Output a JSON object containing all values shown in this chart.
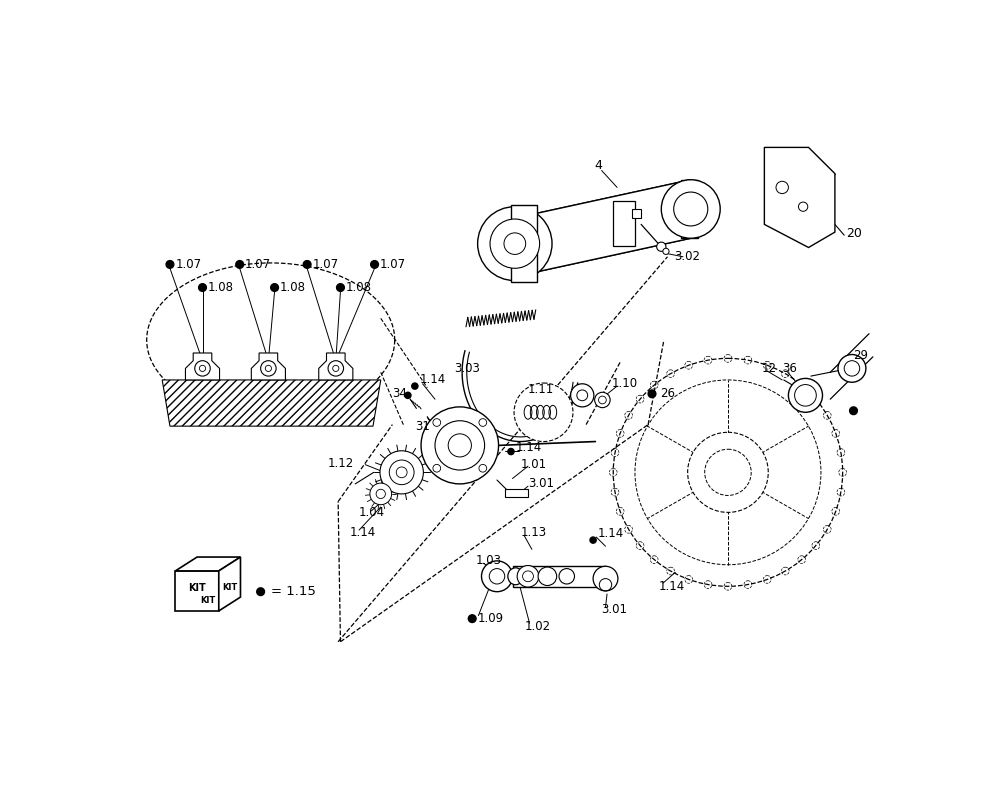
{
  "bg_color": "#ffffff",
  "lc": "#000000",
  "figsize": [
    10.0,
    7.92
  ],
  "dpi": 100,
  "labels_fs": 8.5,
  "kit_text": [
    "KIT",
    "KIT",
    "KIT"
  ],
  "dot_eq": "= 1.15"
}
